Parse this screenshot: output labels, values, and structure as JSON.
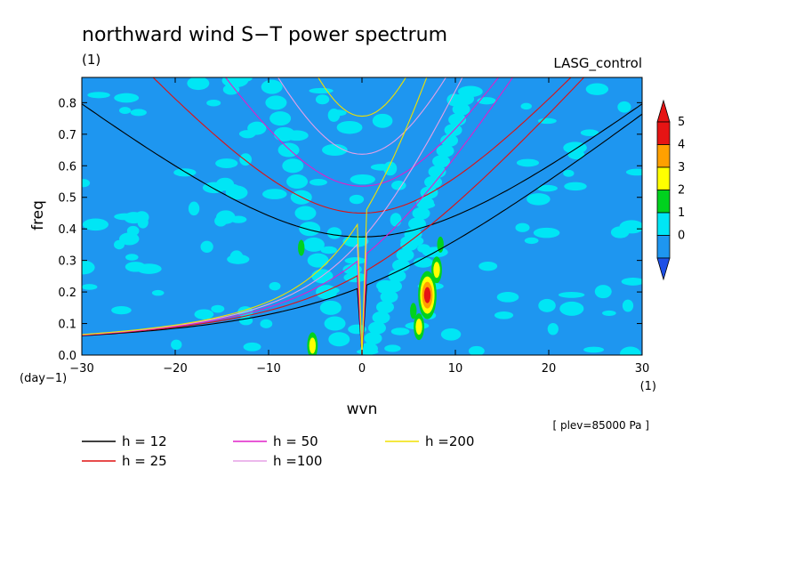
{
  "header": {
    "title": "northward wind S−T power spectrum",
    "left_unit": "(1)",
    "experiment": "LASG_control"
  },
  "chart_data": {
    "type": "heatmap",
    "xlabel": "wvn",
    "ylabel": "freq",
    "x_unit": "(1)",
    "y_unit": "(day−1)",
    "xlim": [
      -30,
      30
    ],
    "ylim": [
      0,
      0.88
    ],
    "x_ticks": [
      {
        "value": -30,
        "label": "−30"
      },
      {
        "value": -20,
        "label": "−20"
      },
      {
        "value": -10,
        "label": "−10"
      },
      {
        "value": 0,
        "label": "0"
      },
      {
        "value": 10,
        "label": "10"
      },
      {
        "value": 20,
        "label": "20"
      },
      {
        "value": 30,
        "label": "30"
      }
    ],
    "y_ticks": [
      {
        "value": 0.0,
        "label": "0.0"
      },
      {
        "value": 0.1,
        "label": "0.1"
      },
      {
        "value": 0.2,
        "label": "0.2"
      },
      {
        "value": 0.3,
        "label": "0.3"
      },
      {
        "value": 0.4,
        "label": "0.4"
      },
      {
        "value": 0.5,
        "label": "0.5"
      },
      {
        "value": 0.6,
        "label": "0.6"
      },
      {
        "value": 0.7,
        "label": "0.7"
      },
      {
        "value": 0.8,
        "label": "0.8"
      }
    ],
    "colorbar": {
      "levels": [
        {
          "label": "0",
          "color": "#1e96f0"
        },
        {
          "label": "1",
          "color": "#00e6f5"
        },
        {
          "label": "2",
          "color": "#00d21e"
        },
        {
          "label": "3",
          "color": "#ffff00"
        },
        {
          "label": "4",
          "color": "#ffa000"
        },
        {
          "label": "5",
          "color": "#e61414"
        }
      ],
      "under_color": "#1e50e6",
      "over_color": "#e61414"
    },
    "dispersion_curves": [
      {
        "name": "h = 12",
        "h": 12,
        "color": "#000000"
      },
      {
        "name": "h = 25",
        "h": 25,
        "color": "#e01010"
      },
      {
        "name": "h = 50",
        "h": 50,
        "color": "#e020c8"
      },
      {
        "name": "h =100",
        "h": 100,
        "color": "#e6a0e6"
      },
      {
        "name": "h =200",
        "h": 200,
        "color": "#f0e000"
      }
    ],
    "hotspots": [
      {
        "x": 7,
        "y": 0.19,
        "level": 5
      },
      {
        "x": 6.1,
        "y": 0.09,
        "level": 3
      },
      {
        "x": 8,
        "y": 0.27,
        "level": 3
      },
      {
        "x": -5.3,
        "y": 0.03,
        "level": 3
      },
      {
        "x": 8.4,
        "y": 0.35,
        "level": 2
      },
      {
        "x": 5.5,
        "y": 0.14,
        "level": 2
      },
      {
        "x": -6.5,
        "y": 0.34,
        "level": 2
      }
    ],
    "note": "[ plev=85000 Pa ]"
  }
}
